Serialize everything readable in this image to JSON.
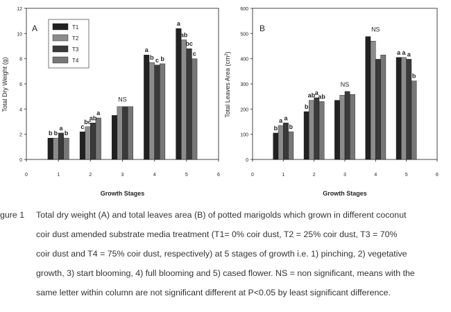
{
  "chart_data": [
    {
      "type": "bar",
      "panel": "A",
      "ylabel": "Total Dry Weight (g)",
      "xlabel": "Growth Stages",
      "xticks": [
        "0",
        "1",
        "2",
        "3",
        "4",
        "5",
        "6"
      ],
      "yticks": [
        "0",
        "2",
        "4",
        "6",
        "8",
        "10",
        "12"
      ],
      "ylim": [
        0,
        12
      ],
      "xlim": [
        0,
        6
      ],
      "categories": [
        1,
        2,
        3,
        4,
        5
      ],
      "legend_placement": "top-left",
      "series": [
        {
          "name": "T1",
          "color": "#222222",
          "values": [
            1.7,
            2.2,
            3.5,
            8.3,
            10.4
          ]
        },
        {
          "name": "T2",
          "color": "#8c8c8c",
          "values": [
            1.7,
            2.6,
            4.2,
            7.7,
            9.5
          ]
        },
        {
          "name": "T3",
          "color": "#3a3a3a",
          "values": [
            2.1,
            2.9,
            4.2,
            7.5,
            8.8
          ]
        },
        {
          "name": "T4",
          "color": "#777777",
          "values": [
            1.7,
            3.3,
            4.2,
            7.6,
            8.0
          ]
        }
      ],
      "annotations": [
        {
          "stage": 1,
          "labels": [
            "b",
            "b",
            "a",
            "b"
          ]
        },
        {
          "stage": 2,
          "labels": [
            "c",
            "bc",
            "ab",
            "a"
          ]
        },
        {
          "stage": 3,
          "text": "NS"
        },
        {
          "stage": 4,
          "labels": [
            "a",
            "b",
            "c",
            "b"
          ]
        },
        {
          "stage": 5,
          "labels": [
            "a",
            "ab",
            "bc",
            "c"
          ]
        }
      ]
    },
    {
      "type": "bar",
      "panel": "B",
      "ylabel": "Total Leaves Area (cm",
      "ylabel_sup": "2",
      "ylabel_tail": ")",
      "xlabel": "Growth Stages",
      "xticks": [
        "0",
        "1",
        "2",
        "3",
        "4",
        "5",
        "6"
      ],
      "yticks": [
        "0",
        "100",
        "200",
        "300",
        "400",
        "500",
        "600"
      ],
      "ylim": [
        0,
        600
      ],
      "xlim": [
        0,
        6
      ],
      "categories": [
        1,
        2,
        3,
        4,
        5
      ],
      "series": [
        {
          "name": "T1",
          "color": "#222222",
          "values": [
            105,
            190,
            235,
            488,
            405
          ]
        },
        {
          "name": "T2",
          "color": "#8c8c8c",
          "values": [
            135,
            235,
            255,
            470,
            405
          ]
        },
        {
          "name": "T3",
          "color": "#3a3a3a",
          "values": [
            145,
            245,
            270,
            398,
            398
          ]
        },
        {
          "name": "T4",
          "color": "#777777",
          "values": [
            110,
            230,
            258,
            415,
            312
          ]
        }
      ],
      "annotations": [
        {
          "stage": 1,
          "labels": [
            "b",
            "a",
            "a",
            "b"
          ]
        },
        {
          "stage": 2,
          "labels": [
            "b",
            "ab",
            "a",
            "ab"
          ]
        },
        {
          "stage": 3,
          "text": "NS"
        },
        {
          "stage": 4,
          "text": "NS"
        },
        {
          "stage": 5,
          "labels": [
            "a",
            "a",
            "a",
            "b"
          ]
        }
      ]
    }
  ],
  "caption": {
    "label": "gure 1",
    "lines": [
      "Total dry weight (A) and total leaves area (B) of potted marigolds which grown in different coconut",
      "coir dust amended substrate media treatment (T1= 0% coir dust, T2 = 25% coir dust, T3 = 70%",
      "coir dust and T4 = 75% coir dust, respectively) at 5 stages of growth i.e. 1) pinching, 2) vegetative",
      "growth, 3) start blooming, 4) full blooming and 5) cased flower. NS = non significant, means with the",
      "same letter within column are not significant different at P<0.05 by least significant difference."
    ]
  }
}
